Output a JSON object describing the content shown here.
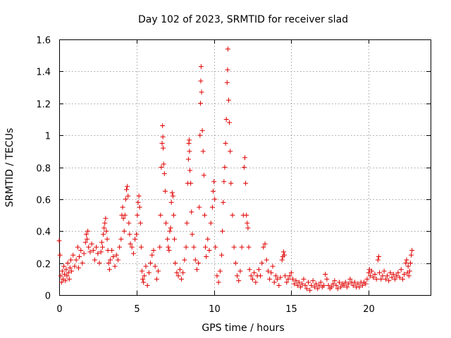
{
  "chart_data": {
    "type": "scatter",
    "title": "Day 102 of 2023, SRMTID for receiver slad",
    "xlabel": "GPS time / hours",
    "ylabel": "SRMTID / TECUs",
    "xlim": [
      0,
      24
    ],
    "ylim": [
      0,
      1.6
    ],
    "x_ticks": [
      0,
      5,
      10,
      15,
      20
    ],
    "x_tick_labels": [
      "0",
      "5",
      "10",
      "15",
      "20"
    ],
    "y_ticks": [
      0,
      0.2,
      0.4,
      0.6,
      0.8,
      1.0,
      1.2,
      1.4,
      1.6
    ],
    "y_tick_labels": [
      "0",
      "0.2",
      "0.4",
      "0.6",
      "0.8",
      "1",
      "1.2",
      "1.4",
      "1.6"
    ],
    "grid": true,
    "marker": "+",
    "marker_color": "#e00000",
    "series": [
      {
        "name": "SRMTID",
        "points": [
          [
            0.0,
            0.34
          ],
          [
            0.05,
            0.25
          ],
          [
            0.1,
            0.12
          ],
          [
            0.15,
            0.08
          ],
          [
            0.2,
            0.15
          ],
          [
            0.25,
            0.1
          ],
          [
            0.3,
            0.18
          ],
          [
            0.35,
            0.13
          ],
          [
            0.4,
            0.09
          ],
          [
            0.45,
            0.16
          ],
          [
            0.5,
            0.12
          ],
          [
            0.55,
            0.2
          ],
          [
            0.6,
            0.14
          ],
          [
            0.65,
            0.1
          ],
          [
            0.7,
            0.17
          ],
          [
            0.75,
            0.22
          ],
          [
            0.8,
            0.15
          ],
          [
            0.9,
            0.25
          ],
          [
            1.0,
            0.18
          ],
          [
            1.1,
            0.22
          ],
          [
            1.2,
            0.3
          ],
          [
            1.25,
            0.17
          ],
          [
            1.3,
            0.24
          ],
          [
            1.4,
            0.28
          ],
          [
            1.5,
            0.2
          ],
          [
            1.6,
            0.26
          ],
          [
            1.7,
            0.33
          ],
          [
            1.75,
            0.38
          ],
          [
            1.8,
            0.35
          ],
          [
            1.85,
            0.4
          ],
          [
            1.9,
            0.3
          ],
          [
            2.0,
            0.27
          ],
          [
            2.1,
            0.32
          ],
          [
            2.2,
            0.28
          ],
          [
            2.3,
            0.22
          ],
          [
            2.4,
            0.3
          ],
          [
            2.5,
            0.26
          ],
          [
            2.6,
            0.2
          ],
          [
            2.7,
            0.27
          ],
          [
            2.75,
            0.33
          ],
          [
            2.8,
            0.3
          ],
          [
            2.85,
            0.38
          ],
          [
            2.9,
            0.42
          ],
          [
            2.95,
            0.45
          ],
          [
            3.0,
            0.48
          ],
          [
            3.05,
            0.4
          ],
          [
            3.1,
            0.35
          ],
          [
            3.15,
            0.28
          ],
          [
            3.2,
            0.2
          ],
          [
            3.25,
            0.16
          ],
          [
            3.3,
            0.22
          ],
          [
            3.4,
            0.28
          ],
          [
            3.5,
            0.24
          ],
          [
            3.6,
            0.18
          ],
          [
            3.7,
            0.25
          ],
          [
            3.8,
            0.22
          ],
          [
            3.9,
            0.3
          ],
          [
            4.0,
            0.35
          ],
          [
            4.05,
            0.5
          ],
          [
            4.1,
            0.55
          ],
          [
            4.15,
            0.48
          ],
          [
            4.2,
            0.4
          ],
          [
            4.25,
            0.5
          ],
          [
            4.3,
            0.6
          ],
          [
            4.35,
            0.66
          ],
          [
            4.4,
            0.68
          ],
          [
            4.45,
            0.62
          ],
          [
            4.5,
            0.45
          ],
          [
            4.55,
            0.38
          ],
          [
            4.6,
            0.32
          ],
          [
            4.7,
            0.3
          ],
          [
            4.8,
            0.26
          ],
          [
            4.9,
            0.35
          ],
          [
            5.0,
            0.38
          ],
          [
            5.05,
            0.5
          ],
          [
            5.1,
            0.58
          ],
          [
            5.15,
            0.62
          ],
          [
            5.2,
            0.55
          ],
          [
            5.25,
            0.45
          ],
          [
            5.3,
            0.3
          ],
          [
            5.35,
            0.15
          ],
          [
            5.4,
            0.1
          ],
          [
            5.45,
            0.08
          ],
          [
            5.5,
            0.12
          ],
          [
            5.6,
            0.18
          ],
          [
            5.7,
            0.06
          ],
          [
            5.8,
            0.14
          ],
          [
            5.9,
            0.2
          ],
          [
            6.0,
            0.25
          ],
          [
            6.1,
            0.28
          ],
          [
            6.2,
            0.18
          ],
          [
            6.3,
            0.1
          ],
          [
            6.4,
            0.15
          ],
          [
            6.5,
            0.3
          ],
          [
            6.55,
            0.5
          ],
          [
            6.6,
            0.8
          ],
          [
            6.65,
            0.95
          ],
          [
            6.68,
            1.06
          ],
          [
            6.7,
            0.99
          ],
          [
            6.72,
            0.92
          ],
          [
            6.75,
            0.82
          ],
          [
            6.8,
            0.76
          ],
          [
            6.85,
            0.65
          ],
          [
            6.9,
            0.45
          ],
          [
            7.0,
            0.35
          ],
          [
            7.05,
            0.3
          ],
          [
            7.1,
            0.28
          ],
          [
            7.15,
            0.4
          ],
          [
            7.2,
            0.42
          ],
          [
            7.25,
            0.58
          ],
          [
            7.3,
            0.64
          ],
          [
            7.35,
            0.62
          ],
          [
            7.4,
            0.5
          ],
          [
            7.45,
            0.35
          ],
          [
            7.5,
            0.2
          ],
          [
            7.6,
            0.14
          ],
          [
            7.7,
            0.12
          ],
          [
            7.8,
            0.16
          ],
          [
            7.9,
            0.1
          ],
          [
            8.0,
            0.14
          ],
          [
            8.1,
            0.22
          ],
          [
            8.2,
            0.3
          ],
          [
            8.25,
            0.45
          ],
          [
            8.3,
            0.7
          ],
          [
            8.35,
            0.85
          ],
          [
            8.38,
            0.95
          ],
          [
            8.4,
            0.97
          ],
          [
            8.42,
            0.9
          ],
          [
            8.45,
            0.78
          ],
          [
            8.5,
            0.7
          ],
          [
            8.55,
            0.52
          ],
          [
            8.6,
            0.38
          ],
          [
            8.7,
            0.3
          ],
          [
            8.8,
            0.22
          ],
          [
            8.9,
            0.16
          ],
          [
            9.0,
            0.2
          ],
          [
            9.05,
            0.55
          ],
          [
            9.1,
            1.0
          ],
          [
            9.13,
            1.2
          ],
          [
            9.15,
            1.34
          ],
          [
            9.17,
            1.43
          ],
          [
            9.2,
            1.27
          ],
          [
            9.25,
            1.03
          ],
          [
            9.3,
            0.9
          ],
          [
            9.35,
            0.75
          ],
          [
            9.4,
            0.5
          ],
          [
            9.45,
            0.3
          ],
          [
            9.5,
            0.24
          ],
          [
            9.6,
            0.35
          ],
          [
            9.7,
            0.28
          ],
          [
            9.8,
            0.45
          ],
          [
            9.9,
            0.55
          ],
          [
            9.95,
            0.65
          ],
          [
            10.0,
            0.71
          ],
          [
            10.05,
            0.6
          ],
          [
            10.1,
            0.3
          ],
          [
            10.2,
            0.12
          ],
          [
            10.3,
            0.08
          ],
          [
            10.4,
            0.15
          ],
          [
            10.5,
            0.25
          ],
          [
            10.55,
            0.4
          ],
          [
            10.6,
            0.58
          ],
          [
            10.65,
            0.71
          ],
          [
            10.7,
            0.8
          ],
          [
            10.75,
            0.95
          ],
          [
            10.8,
            1.1
          ],
          [
            10.85,
            1.33
          ],
          [
            10.88,
            1.41
          ],
          [
            10.9,
            1.54
          ],
          [
            10.95,
            1.22
          ],
          [
            11.0,
            1.08
          ],
          [
            11.05,
            0.9
          ],
          [
            11.1,
            0.7
          ],
          [
            11.2,
            0.5
          ],
          [
            11.3,
            0.3
          ],
          [
            11.4,
            0.2
          ],
          [
            11.5,
            0.12
          ],
          [
            11.6,
            0.09
          ],
          [
            11.7,
            0.15
          ],
          [
            11.8,
            0.3
          ],
          [
            11.9,
            0.5
          ],
          [
            11.95,
            0.8
          ],
          [
            12.0,
            0.86
          ],
          [
            12.05,
            0.7
          ],
          [
            12.1,
            0.5
          ],
          [
            12.15,
            0.45
          ],
          [
            12.2,
            0.42
          ],
          [
            12.25,
            0.3
          ],
          [
            12.3,
            0.16
          ],
          [
            12.4,
            0.12
          ],
          [
            12.5,
            0.1
          ],
          [
            12.6,
            0.14
          ],
          [
            12.7,
            0.08
          ],
          [
            12.8,
            0.12
          ],
          [
            12.9,
            0.16
          ],
          [
            13.0,
            0.12
          ],
          [
            13.1,
            0.2
          ],
          [
            13.2,
            0.3
          ],
          [
            13.3,
            0.32
          ],
          [
            13.4,
            0.22
          ],
          [
            13.5,
            0.15
          ],
          [
            13.6,
            0.1
          ],
          [
            13.7,
            0.14
          ],
          [
            13.8,
            0.18
          ],
          [
            13.9,
            0.08
          ],
          [
            14.0,
            0.12
          ],
          [
            14.1,
            0.1
          ],
          [
            14.2,
            0.06
          ],
          [
            14.3,
            0.11
          ],
          [
            14.4,
            0.22
          ],
          [
            14.45,
            0.24
          ],
          [
            14.5,
            0.27
          ],
          [
            14.55,
            0.25
          ],
          [
            14.6,
            0.12
          ],
          [
            14.7,
            0.08
          ],
          [
            14.8,
            0.1
          ],
          [
            14.9,
            0.12
          ],
          [
            15.0,
            0.14
          ],
          [
            15.1,
            0.1
          ],
          [
            15.2,
            0.07
          ],
          [
            15.3,
            0.09
          ],
          [
            15.4,
            0.06
          ],
          [
            15.5,
            0.08
          ],
          [
            15.6,
            0.05
          ],
          [
            15.7,
            0.07
          ],
          [
            15.8,
            0.1
          ],
          [
            15.9,
            0.06
          ],
          [
            16.0,
            0.04
          ],
          [
            16.1,
            0.08
          ],
          [
            16.2,
            0.03
          ],
          [
            16.3,
            0.06
          ],
          [
            16.4,
            0.09
          ],
          [
            16.5,
            0.05
          ],
          [
            16.6,
            0.07
          ],
          [
            16.7,
            0.04
          ],
          [
            16.8,
            0.06
          ],
          [
            16.9,
            0.08
          ],
          [
            17.0,
            0.05
          ],
          [
            17.1,
            0.06
          ],
          [
            17.2,
            0.13
          ],
          [
            17.3,
            0.1
          ],
          [
            17.4,
            0.06
          ],
          [
            17.5,
            0.04
          ],
          [
            17.6,
            0.05
          ],
          [
            17.7,
            0.07
          ],
          [
            17.8,
            0.09
          ],
          [
            17.9,
            0.06
          ],
          [
            18.0,
            0.04
          ],
          [
            18.1,
            0.08
          ],
          [
            18.2,
            0.05
          ],
          [
            18.3,
            0.07
          ],
          [
            18.4,
            0.06
          ],
          [
            18.5,
            0.08
          ],
          [
            18.6,
            0.05
          ],
          [
            18.7,
            0.07
          ],
          [
            18.8,
            0.1
          ],
          [
            18.9,
            0.08
          ],
          [
            19.0,
            0.06
          ],
          [
            19.1,
            0.08
          ],
          [
            19.2,
            0.05
          ],
          [
            19.3,
            0.07
          ],
          [
            19.4,
            0.05
          ],
          [
            19.5,
            0.08
          ],
          [
            19.6,
            0.06
          ],
          [
            19.7,
            0.08
          ],
          [
            19.8,
            0.07
          ],
          [
            19.9,
            0.1
          ],
          [
            20.0,
            0.14
          ],
          [
            20.05,
            0.16
          ],
          [
            20.1,
            0.12
          ],
          [
            20.2,
            0.15
          ],
          [
            20.3,
            0.11
          ],
          [
            20.4,
            0.13
          ],
          [
            20.5,
            0.1
          ],
          [
            20.6,
            0.22
          ],
          [
            20.65,
            0.24
          ],
          [
            20.7,
            0.14
          ],
          [
            20.8,
            0.1
          ],
          [
            20.9,
            0.12
          ],
          [
            21.0,
            0.15
          ],
          [
            21.1,
            0.1
          ],
          [
            21.2,
            0.12
          ],
          [
            21.3,
            0.09
          ],
          [
            21.4,
            0.14
          ],
          [
            21.5,
            0.11
          ],
          [
            21.6,
            0.13
          ],
          [
            21.7,
            0.1
          ],
          [
            21.8,
            0.12
          ],
          [
            21.9,
            0.14
          ],
          [
            22.0,
            0.11
          ],
          [
            22.1,
            0.16
          ],
          [
            22.2,
            0.1
          ],
          [
            22.3,
            0.13
          ],
          [
            22.4,
            0.2
          ],
          [
            22.45,
            0.22
          ],
          [
            22.5,
            0.14
          ],
          [
            22.55,
            0.18
          ],
          [
            22.6,
            0.12
          ],
          [
            22.65,
            0.15
          ],
          [
            22.7,
            0.2
          ],
          [
            22.75,
            0.25
          ],
          [
            22.8,
            0.28
          ]
        ]
      }
    ]
  }
}
